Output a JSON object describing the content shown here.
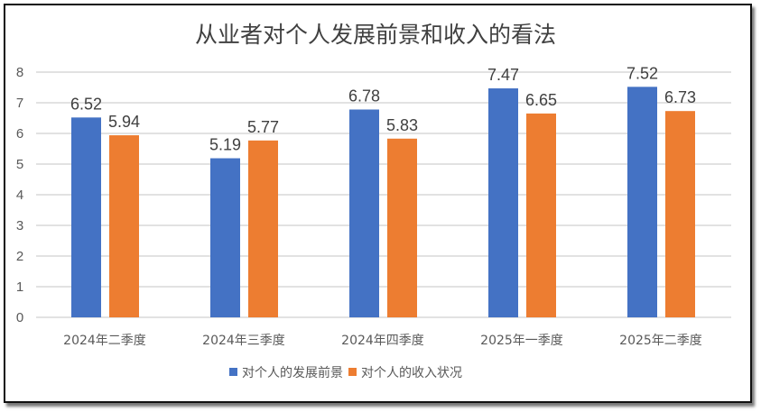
{
  "chart_data": {
    "type": "bar",
    "title": "从业者对个人发展前景和收入的看法",
    "categories": [
      "2024年二季度",
      "2024年三季度",
      "2024年四季度",
      "2025年一季度",
      "2025年二季度"
    ],
    "series": [
      {
        "name": "对个人的发展前景",
        "values": [
          6.52,
          5.19,
          6.78,
          7.47,
          7.52
        ],
        "color": "#4472C4"
      },
      {
        "name": "对个人的收入状况",
        "values": [
          5.94,
          5.77,
          5.83,
          6.65,
          6.73
        ],
        "color": "#ED7D31"
      }
    ],
    "ylim": [
      0,
      8
    ],
    "yticks": [
      "0",
      "1",
      "2",
      "3",
      "4",
      "5",
      "6",
      "7",
      "8"
    ],
    "grid": true,
    "legend": "bottom",
    "data_labels": true
  }
}
